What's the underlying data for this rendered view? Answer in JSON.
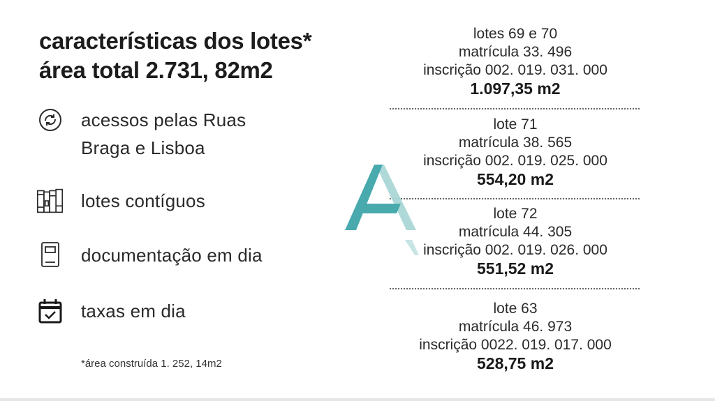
{
  "header": {
    "title_line1": "características dos lotes*",
    "title_line2": "área total 2.731, 82m2"
  },
  "features": [
    {
      "icon": "circular-arrows-icon",
      "line1": "acessos pelas Ruas",
      "line2": "Braga e Lisboa"
    },
    {
      "icon": "books-icon",
      "line1": "lotes contíguos"
    },
    {
      "icon": "document-icon",
      "line1": "documentação em dia"
    },
    {
      "icon": "calendar-check-icon",
      "line1": "taxas em dia"
    }
  ],
  "footnote": "*área construída 1. 252, 14m2",
  "lots": [
    {
      "name": "lotes 69 e 70",
      "matricula": "matrícula 33. 496",
      "inscricao": "inscrição 002. 019. 031. 000",
      "area": "1.097,35 m2"
    },
    {
      "name": "lote 71",
      "matricula": "matrícula 38. 565",
      "inscricao": "inscrição 002. 019. 025. 000",
      "area": "554,20 m2"
    },
    {
      "name": "lote 72",
      "matricula": "matrícula 44. 305",
      "inscricao": "inscrição 002. 019. 026. 000",
      "area": "551,52 m2"
    },
    {
      "name": "lote 63",
      "matricula": "matrícula 46. 973",
      "inscricao": "inscrição 0022. 019. 017. 000",
      "area": "528,75 m2"
    }
  ],
  "colors": {
    "logo_teal": "#3aa3a8",
    "logo_light": "#a9d6d6",
    "text": "#1c1c1c"
  }
}
